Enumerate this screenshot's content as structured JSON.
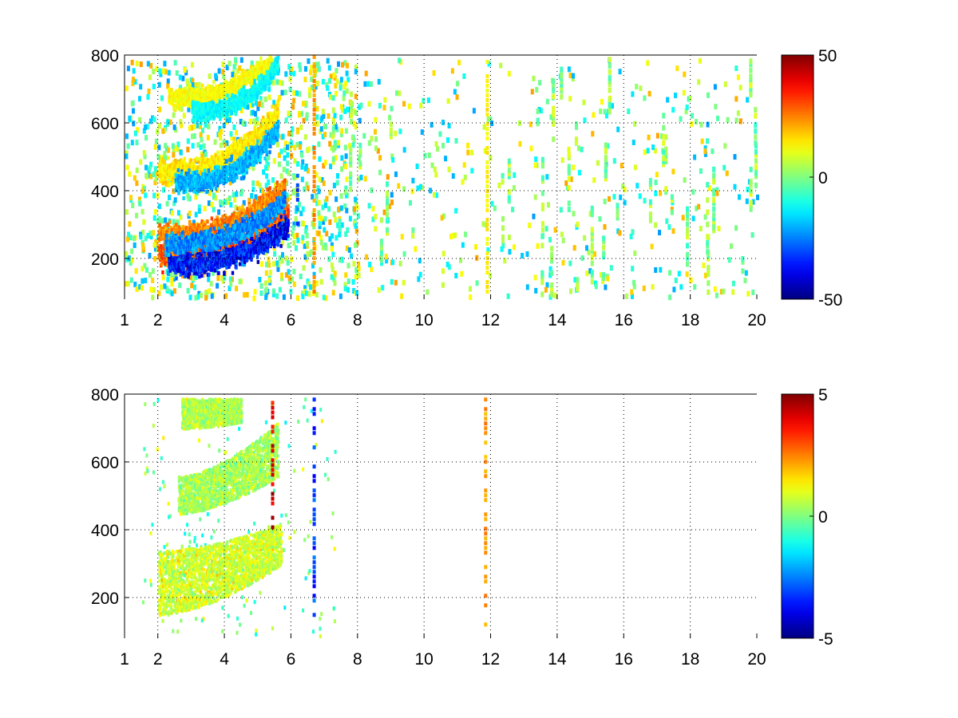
{
  "chart_data": [
    {
      "type": "heatmap",
      "x_tick_labels": [
        "1",
        "2",
        "4",
        "6",
        "8",
        "10",
        "12",
        "14",
        "16",
        "18",
        "20"
      ],
      "x_ticks": [
        1,
        2,
        4,
        6,
        8,
        10,
        12,
        14,
        16,
        18,
        20
      ],
      "y_tick_labels": [
        "200",
        "400",
        "600",
        "800"
      ],
      "y_ticks": [
        200,
        400,
        600,
        800
      ],
      "xlim": [
        1,
        20
      ],
      "ylim": [
        80,
        800
      ],
      "grid": true,
      "colorbar": {
        "min": -50,
        "max": 50,
        "tick_labels": [
          "50",
          "0",
          "-50"
        ],
        "ticks": [
          50,
          0,
          -50
        ],
        "colormap": "jet"
      },
      "features": [
        {
          "kind": "arc",
          "x0": 2.0,
          "x1": 5.9,
          "y_start": 215,
          "y_end": 345,
          "value": 35,
          "width": 32
        },
        {
          "kind": "arc",
          "x0": 2.3,
          "x1": 5.9,
          "y_start": 190,
          "y_end": 300,
          "value": -45,
          "width": 30
        },
        {
          "kind": "arc",
          "x0": 2.0,
          "x1": 5.8,
          "y_start": 275,
          "y_end": 420,
          "value": 30,
          "width": 28
        },
        {
          "kind": "arc",
          "x0": 2.2,
          "x1": 5.8,
          "y_start": 250,
          "y_end": 380,
          "value": -30,
          "width": 26
        },
        {
          "kind": "arc",
          "x0": 2.0,
          "x1": 5.6,
          "y_start": 460,
          "y_end": 640,
          "value": 18,
          "width": 34
        },
        {
          "kind": "arc",
          "x0": 2.5,
          "x1": 5.6,
          "y_start": 430,
          "y_end": 590,
          "value": -25,
          "width": 28
        },
        {
          "kind": "arc",
          "x0": 2.3,
          "x1": 5.4,
          "y_start": 680,
          "y_end": 790,
          "value": 15,
          "width": 26
        },
        {
          "kind": "arc",
          "x0": 3.0,
          "x1": 5.6,
          "y_start": 640,
          "y_end": 780,
          "value": -15,
          "width": 26
        },
        {
          "kind": "column",
          "x": 6.2,
          "y0": 300,
          "y1": 450,
          "value": -30
        },
        {
          "kind": "column",
          "x": 6.7,
          "y0": 90,
          "y1": 800,
          "value": 25
        },
        {
          "kind": "column",
          "x": 11.9,
          "y0": 90,
          "y1": 800,
          "value": 15
        }
      ],
      "scatter_density": "dense up to x=8, sparse beyond"
    },
    {
      "type": "heatmap",
      "x_tick_labels": [
        "1",
        "2",
        "4",
        "6",
        "8",
        "10",
        "12",
        "14",
        "16",
        "18",
        "20"
      ],
      "x_ticks": [
        1,
        2,
        4,
        6,
        8,
        10,
        12,
        14,
        16,
        18,
        20
      ],
      "y_tick_labels": [
        "200",
        "400",
        "600",
        "800"
      ],
      "y_ticks": [
        200,
        400,
        600,
        800
      ],
      "xlim": [
        1,
        20
      ],
      "ylim": [
        80,
        800
      ],
      "grid": true,
      "colorbar": {
        "min": -5,
        "max": 5,
        "tick_labels": [
          "5",
          "0",
          "-5"
        ],
        "ticks": [
          5,
          0,
          -5
        ],
        "colormap": "jet"
      },
      "features": [
        {
          "kind": "band",
          "x0": 2.0,
          "x1": 5.7,
          "y_start": 150,
          "y_end": 300,
          "y_top_start": 340,
          "y_top_end": 420,
          "value": 0.8
        },
        {
          "kind": "band",
          "x0": 2.6,
          "x1": 5.6,
          "y_start": 450,
          "y_end": 560,
          "y_top_start": 560,
          "y_top_end": 720,
          "value": 0.4
        },
        {
          "kind": "band",
          "x0": 2.7,
          "x1": 4.5,
          "y_start": 700,
          "y_end": 720,
          "y_top_start": 790,
          "y_top_end": 790,
          "value": 0.5
        },
        {
          "kind": "column",
          "x": 5.45,
          "y0": 400,
          "y1": 780,
          "value": 4.5
        },
        {
          "kind": "column",
          "x": 6.7,
          "y0": 130,
          "y1": 790,
          "value": -3.5
        },
        {
          "kind": "column",
          "x": 11.85,
          "y0": 90,
          "y1": 790,
          "value": 2.5
        }
      ],
      "scatter_density": "sparse, concentrated below x=7"
    }
  ]
}
